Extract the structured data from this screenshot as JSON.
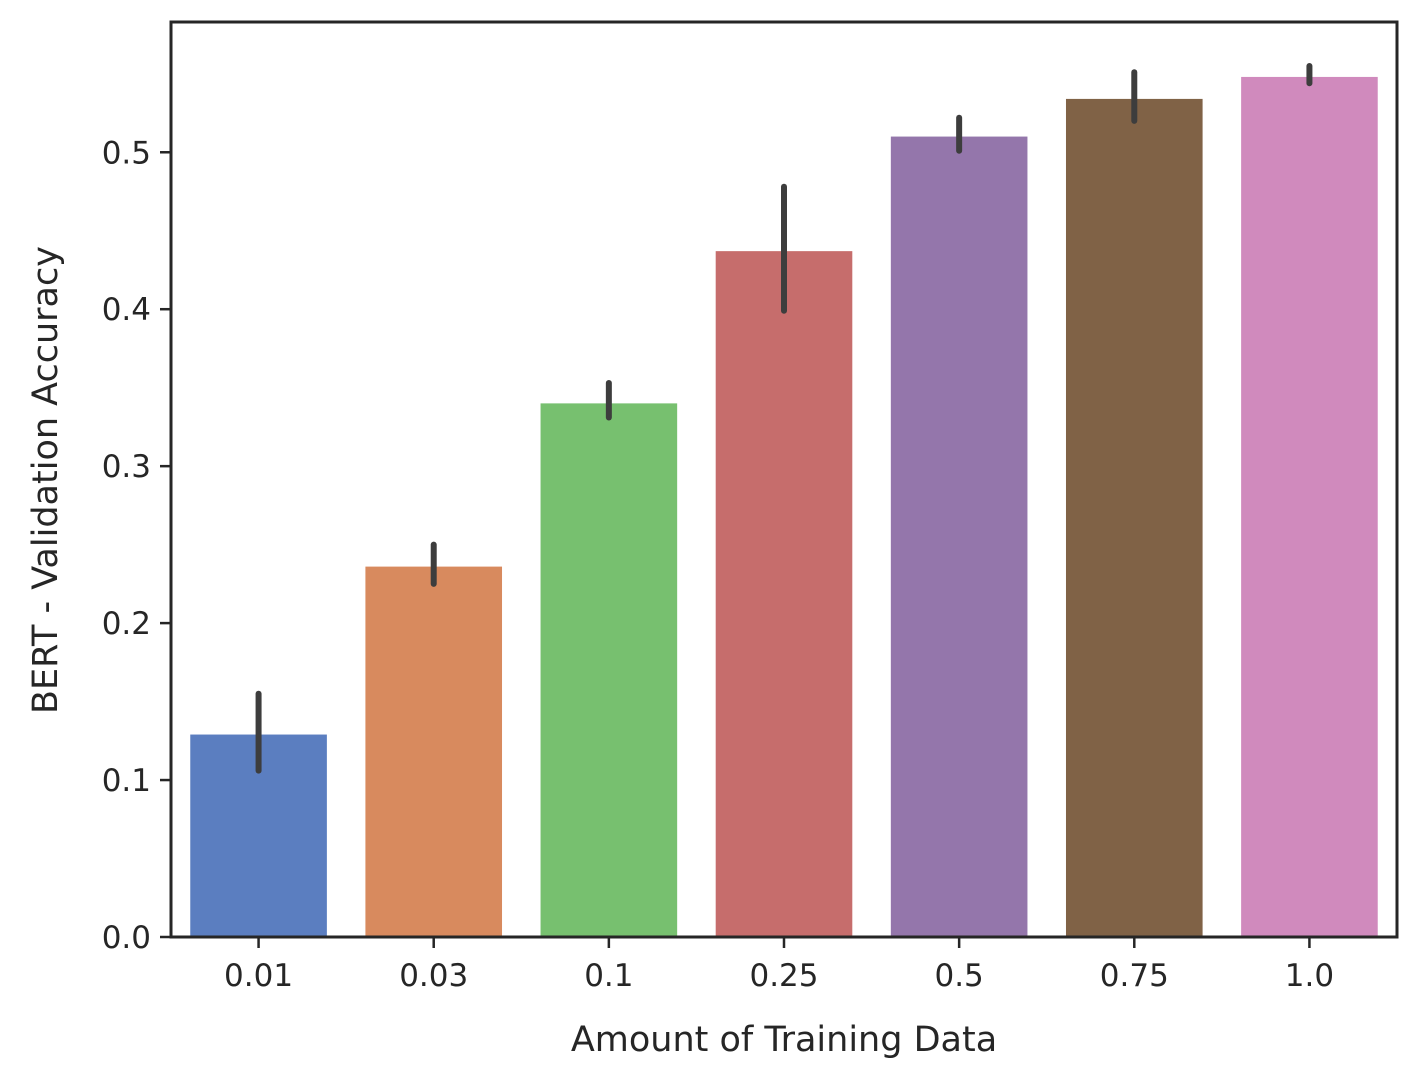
{
  "chart_data": {
    "type": "bar",
    "title": "",
    "xlabel": "Amount of Training Data",
    "ylabel": "BERT - Validation Accuracy",
    "categories": [
      "0.01",
      "0.03",
      "0.1",
      "0.25",
      "0.5",
      "0.75",
      "1.0"
    ],
    "values": [
      0.129,
      0.236,
      0.34,
      0.437,
      0.51,
      0.534,
      0.548
    ],
    "error_low": [
      0.106,
      0.225,
      0.331,
      0.399,
      0.501,
      0.52,
      0.544
    ],
    "error_high": [
      0.155,
      0.25,
      0.353,
      0.478,
      0.522,
      0.551,
      0.555
    ],
    "colors": [
      "#5b7ec0",
      "#d88a5e",
      "#77c06f",
      "#c66d6c",
      "#9476ab",
      "#806246",
      "#d08abd"
    ],
    "error_color": "#3d3d3d",
    "yticks": [
      0.0,
      0.1,
      0.2,
      0.3,
      0.4,
      0.5
    ],
    "ytick_labels": [
      "0.0",
      "0.1",
      "0.2",
      "0.3",
      "0.4",
      "0.5"
    ],
    "ylim": [
      0,
      0.583
    ],
    "grid": false,
    "legend": "none"
  }
}
